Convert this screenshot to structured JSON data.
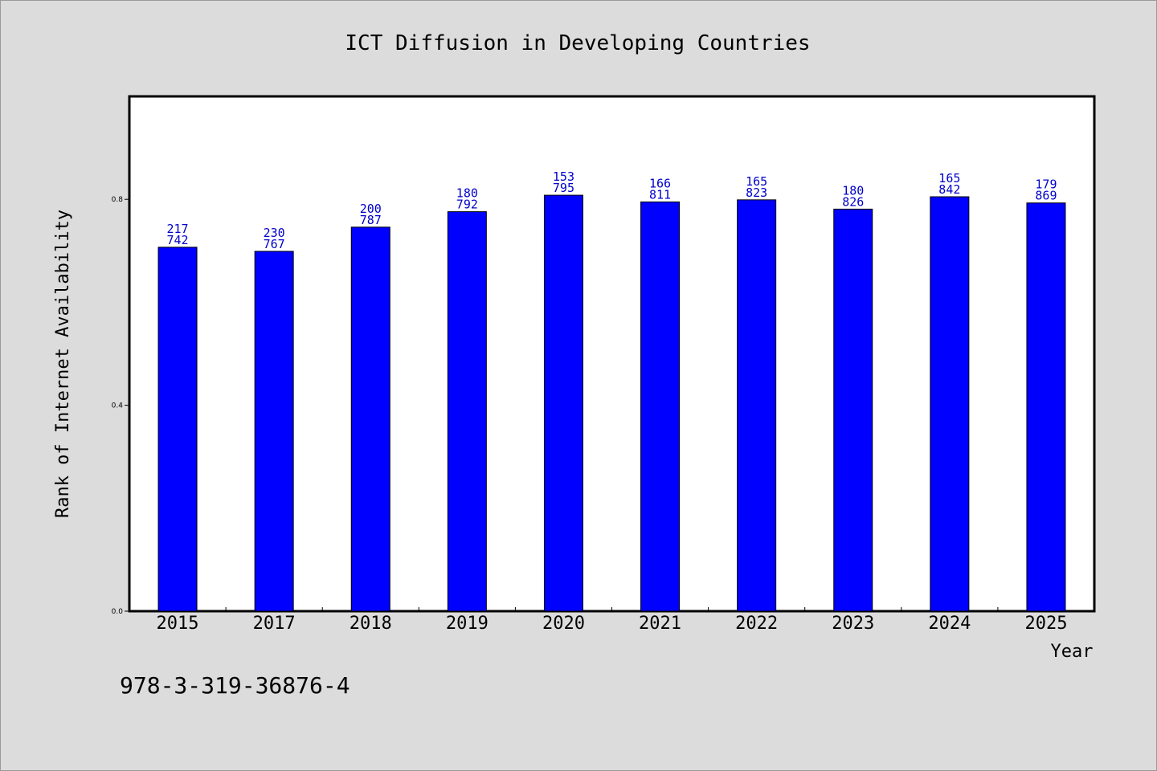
{
  "colors": {
    "background": "#dcdcdc",
    "plot_background": "#ffffff",
    "bar_fill": "#0000ff",
    "bar_stroke": "#000000",
    "data_label": "#0000cc"
  },
  "footer": {
    "isbn": "978-3-319-36876-4"
  },
  "chart_data": {
    "type": "bar",
    "title": "ICT Diffusion in Developing Countries",
    "xlabel": "Year",
    "ylabel": "Rank of Internet Availability",
    "categories": [
      "2015",
      "2017",
      "2018",
      "2019",
      "2020",
      "2021",
      "2022",
      "2023",
      "2024",
      "2025"
    ],
    "values": [
      0.707,
      0.699,
      0.746,
      0.776,
      0.808,
      0.795,
      0.799,
      0.781,
      0.805,
      0.793
    ],
    "ylim": [
      0.0,
      1.0
    ],
    "yticks": [
      "0.0",
      "0.4",
      "0.8"
    ],
    "ytick_values": [
      0.0,
      0.4,
      0.8
    ],
    "data_labels": [
      [
        "217",
        "742"
      ],
      [
        "230",
        "767"
      ],
      [
        "200",
        "787"
      ],
      [
        "180",
        "792"
      ],
      [
        "153",
        "795"
      ],
      [
        "166",
        "811"
      ],
      [
        "165",
        "823"
      ],
      [
        "180",
        "826"
      ],
      [
        "165",
        "842"
      ],
      [
        "179",
        "869"
      ]
    ],
    "grid": false,
    "legend": "none"
  }
}
